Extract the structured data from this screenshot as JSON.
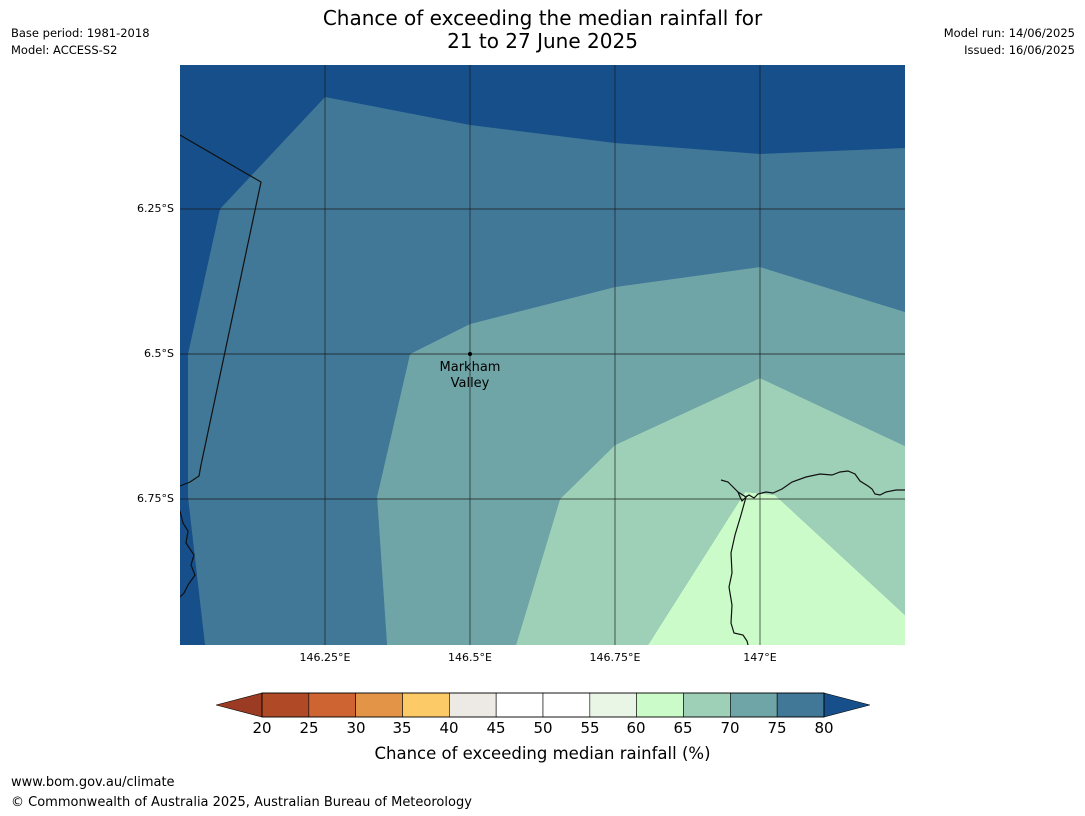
{
  "title": {
    "line1": "Chance of exceeding the median rainfall for",
    "line2": "21 to 27 June 2025"
  },
  "meta_left": {
    "base_period": "Base period: 1981-2018",
    "model": "Model: ACCESS-S2"
  },
  "meta_right": {
    "model_run": "Model run: 14/06/2025",
    "issued": "Issued: 16/06/2025"
  },
  "map": {
    "lat_labels": [
      "6.25°S",
      "6.5°S",
      "6.75°S"
    ],
    "lon_labels": [
      "146.25°E",
      "146.5°E",
      "146.75°E",
      "147°E"
    ],
    "place": {
      "name_line1": "Markham",
      "name_line2": "Valley"
    },
    "zones": [
      {
        "band": "80+",
        "color": "#164f8a"
      },
      {
        "band": "75-80",
        "color": "#417897"
      },
      {
        "band": "70-75",
        "color": "#70a5a7"
      },
      {
        "band": "65-70",
        "color": "#9ed0b8"
      },
      {
        "band": "60-65",
        "color": "#cbfbc8"
      }
    ]
  },
  "colorbar": {
    "extend_low_color": "#9c3b23",
    "extend_high_color": "#164f8a",
    "bins": [
      {
        "range": "20-25",
        "color": "#b04a26"
      },
      {
        "range": "25-30",
        "color": "#cd6432"
      },
      {
        "range": "30-35",
        "color": "#e39446"
      },
      {
        "range": "35-40",
        "color": "#fcca66"
      },
      {
        "range": "40-45",
        "color": "#ede9e4"
      },
      {
        "range": "45-50",
        "color": "#ffffff"
      },
      {
        "range": "50-55",
        "color": "#ffffff"
      },
      {
        "range": "55-60",
        "color": "#e9f6e6"
      },
      {
        "range": "60-65",
        "color": "#cbfbc8"
      },
      {
        "range": "65-70",
        "color": "#9ed0b8"
      },
      {
        "range": "70-75",
        "color": "#70a5a7"
      },
      {
        "range": "75-80",
        "color": "#417897"
      }
    ],
    "ticks": [
      "20",
      "25",
      "30",
      "35",
      "40",
      "45",
      "50",
      "55",
      "60",
      "65",
      "70",
      "75",
      "80"
    ],
    "label": "Chance of exceeding median rainfall (%)"
  },
  "footer": {
    "url": "www.bom.gov.au/climate",
    "copyright": "© Commonwealth of Australia 2025, Australian Bureau of Meteorology"
  }
}
